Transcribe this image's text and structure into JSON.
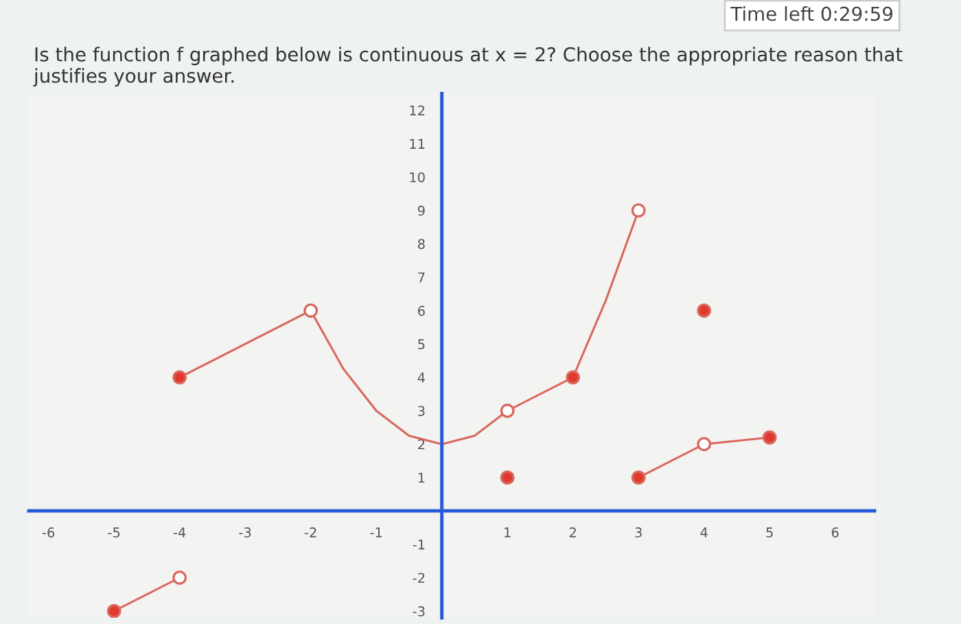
{
  "chart_data": {
    "type": "line",
    "title": "Is the function f graphed below is continuous at x = 2? Choose the appropriate reason that justifies your answer.",
    "annotations": [
      "Time left 0:29:59"
    ],
    "series": [
      {
        "color": "#d9675e",
        "x": [
          -5,
          -4
        ],
        "values": [
          -3,
          -2
        ]
      },
      {
        "color": "#d9675e",
        "x": [
          -4,
          -2,
          -1.5,
          -1,
          -0.5,
          0,
          0.5,
          1,
          2,
          2.5,
          3
        ],
        "values": [
          4,
          6,
          4.25,
          3,
          2.25,
          2,
          2.25,
          3,
          4,
          6.3,
          9
        ]
      },
      {
        "color": "#d9675e",
        "x": [
          3,
          4,
          5
        ],
        "values": [
          1,
          2,
          2.2
        ]
      },
      {
        "type": "scatter",
        "marker": "circle",
        "color": "#e03a2f",
        "x": [
          -5,
          -4,
          1,
          2,
          3,
          4,
          5
        ],
        "values": [
          -3,
          4,
          1,
          4,
          1,
          6,
          2.2
        ]
      },
      {
        "type": "scatter",
        "marker": "circle",
        "color": "#ffffff",
        "x": [
          -4,
          -2,
          1,
          3,
          4
        ],
        "values": [
          -2,
          6,
          3,
          9,
          2
        ]
      }
    ],
    "xlim": [
      -6.3,
      6.6
    ],
    "ylim": [
      -3.2,
      12.5
    ],
    "xticks": [
      -6,
      -5,
      -4,
      -3,
      -2,
      -1,
      1,
      2,
      3,
      4,
      5,
      6
    ],
    "yticks": [
      -3,
      -2,
      -1,
      1,
      2,
      3,
      4,
      5,
      6,
      7,
      8,
      9,
      10,
      11,
      12
    ],
    "grid": false,
    "legend": false
  }
}
